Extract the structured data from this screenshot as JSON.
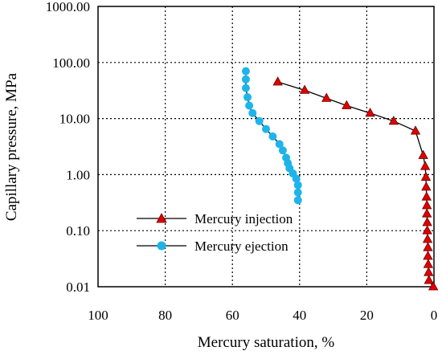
{
  "chart_data": {
    "type": "line",
    "xlabel": "Mercury saturation, %",
    "ylabel": "Capillary pressure, MPa",
    "x_reversed": true,
    "xlim": [
      100,
      0
    ],
    "ylim": [
      0.01,
      1000
    ],
    "yscale": "log",
    "grid": true,
    "grid_style": "dotted",
    "legend_position": "lower-left",
    "x_ticks": [
      "100",
      "80",
      "60",
      "40",
      "20",
      "0"
    ],
    "x_tick_values": [
      100,
      80,
      60,
      40,
      20,
      0
    ],
    "y_ticks": [
      "0.01",
      "0.10",
      "1.00",
      "10.00",
      "100.00",
      "1000.00"
    ],
    "y_tick_values": [
      0.01,
      0.1,
      1,
      10,
      100,
      1000
    ],
    "series": [
      {
        "name": "Mercury injection",
        "color": "#e00000",
        "line_color": "#000000",
        "marker": "triangle",
        "x": [
          0.2,
          1.5,
          1.6,
          1.7,
          1.8,
          1.8,
          1.9,
          2.0,
          2.0,
          2.1,
          2.1,
          2.2,
          2.3,
          2.4,
          2.6,
          3.2,
          5.5,
          12,
          19,
          26,
          32,
          38.5,
          46.5
        ],
        "y": [
          0.01,
          0.013,
          0.018,
          0.025,
          0.035,
          0.05,
          0.07,
          0.1,
          0.14,
          0.2,
          0.28,
          0.4,
          0.6,
          0.9,
          1.4,
          2.2,
          6.0,
          9.0,
          12.5,
          17.0,
          23.0,
          32.0,
          45.0
        ]
      },
      {
        "name": "Mercury ejection",
        "color": "#1eb4ea",
        "line_color": "#000000",
        "marker": "circle",
        "x": [
          56,
          56,
          56,
          55.5,
          55,
          54,
          52,
          50,
          48,
          46,
          45,
          44,
          43.5,
          43,
          42,
          41,
          40.5,
          40.5,
          40.5
        ],
        "y": [
          70,
          50,
          35,
          24,
          17,
          12.5,
          9.0,
          6.5,
          4.8,
          3.5,
          2.7,
          2.0,
          1.6,
          1.3,
          1.05,
          0.85,
          0.65,
          0.48,
          0.35
        ]
      }
    ]
  }
}
